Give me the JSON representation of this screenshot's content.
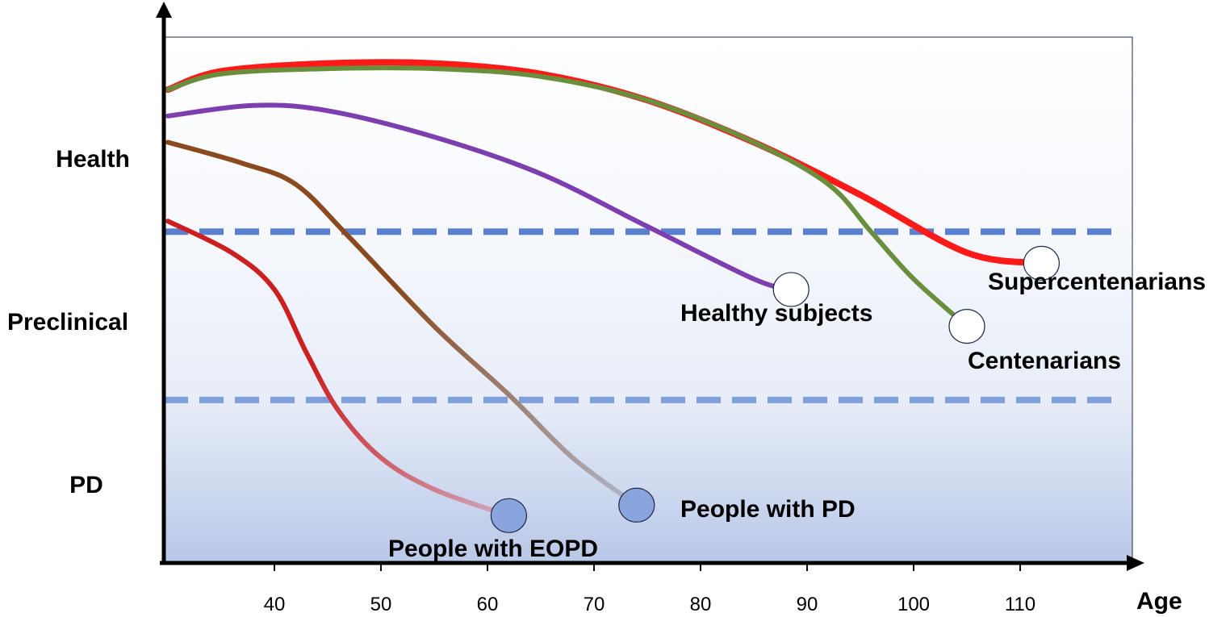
{
  "chart_data": {
    "type": "line",
    "xlabel": "Age",
    "xlim": [
      30,
      115
    ],
    "xticks": [
      40,
      50,
      60,
      70,
      80,
      90,
      100,
      110
    ],
    "ylim": [
      0,
      100
    ],
    "y_categories": [
      {
        "label": "Health",
        "value": 77
      },
      {
        "label": "Preclinical",
        "value": 46
      },
      {
        "label": "PD",
        "value": 15
      }
    ],
    "thresholds": [
      {
        "value": 63,
        "color": "#5b7fcf"
      },
      {
        "value": 31,
        "color": "#7f9fdb"
      }
    ],
    "series": [
      {
        "name": "Supercentenarians",
        "color": "#ff1a1a",
        "end_marker": "open",
        "x": [
          30,
          35,
          45,
          55,
          65,
          75,
          85,
          95,
          105,
          112
        ],
        "y": [
          90,
          93.5,
          95,
          95,
          93,
          88,
          80,
          70,
          59,
          57
        ]
      },
      {
        "name": "Centenarians",
        "color": "#6a8f3c",
        "end_marker": "open",
        "x": [
          30,
          35,
          45,
          55,
          65,
          75,
          85,
          92,
          96,
          100,
          105
        ],
        "y": [
          90,
          93,
          94,
          94,
          92.5,
          88,
          80,
          72,
          63,
          54,
          45
        ]
      },
      {
        "name": "Healthy subjects",
        "color": "#7d3fb0",
        "end_marker": "open",
        "x": [
          30,
          38,
          45,
          55,
          65,
          75,
          85,
          88.5
        ],
        "y": [
          85,
          87,
          86,
          81,
          74,
          64,
          54,
          52
        ]
      },
      {
        "name": "People with PD",
        "color": "#8a4a1e",
        "end_color": "#b0b8cc",
        "end_marker": "filled",
        "x": [
          30,
          37,
          42,
          47,
          55,
          62,
          68,
          74
        ],
        "y": [
          80,
          76,
          72,
          62,
          45,
          32,
          20,
          11
        ]
      },
      {
        "name": "People with EOPD",
        "color": "#cc1f1f",
        "end_color": "#d0a8c0",
        "end_marker": "filled",
        "x": [
          30,
          36,
          40,
          43,
          46,
          50,
          55,
          62
        ],
        "y": [
          65,
          59,
          52,
          40,
          29,
          20,
          14,
          9
        ]
      }
    ]
  }
}
